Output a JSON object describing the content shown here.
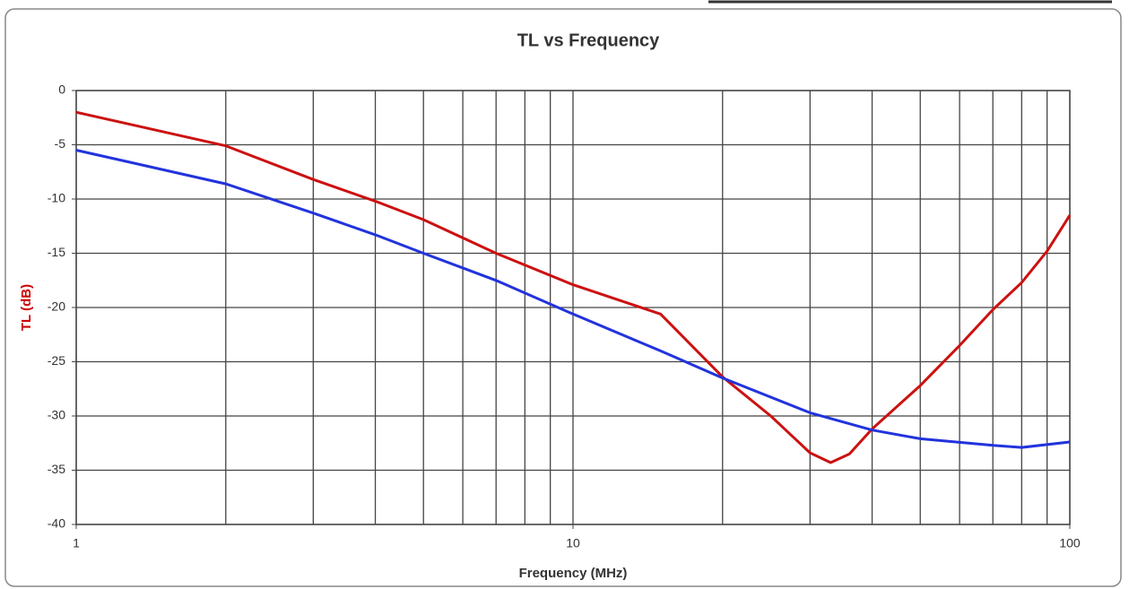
{
  "chart_data": {
    "type": "line",
    "title": "TL  vs Frequency",
    "x_label": "Frequency (MHz)",
    "y_label": "TL (dB)",
    "xscale": "log",
    "xlim": [
      1,
      100
    ],
    "xticks": [
      1,
      10,
      100
    ],
    "xminorticks": [
      2,
      3,
      4,
      5,
      6,
      7,
      8,
      9,
      20,
      30,
      40,
      50,
      60,
      70,
      80,
      90
    ],
    "ylim": [
      -40,
      0
    ],
    "yticks": [
      -40,
      -35,
      -30,
      -25,
      -20,
      -15,
      -10,
      -5,
      0
    ],
    "grid": true,
    "y_label_color": "#cc0000",
    "series": [
      {
        "color": "#cc1111",
        "x": [
          1,
          2,
          3,
          4,
          5,
          7,
          10,
          15,
          20,
          25,
          30,
          33,
          36,
          40,
          50,
          60,
          70,
          80,
          90,
          100
        ],
        "values": [
          -2,
          -5.1,
          -8.2,
          -10.2,
          -11.9,
          -15,
          -17.9,
          -20.6,
          -26.4,
          -30,
          -33.4,
          -34.3,
          -33.5,
          -31.2,
          -27.2,
          -23.5,
          -20.2,
          -17.7,
          -14.8,
          -11.5
        ]
      },
      {
        "color": "#2233dd",
        "x": [
          1,
          2,
          3,
          4,
          5,
          7,
          10,
          15,
          20,
          30,
          40,
          50,
          70,
          80,
          100
        ],
        "values": [
          -5.5,
          -8.6,
          -11.3,
          -13.3,
          -15,
          -17.5,
          -20.6,
          -24,
          -26.5,
          -29.7,
          -31.3,
          -32.1,
          -32.7,
          -32.9,
          -32.4
        ]
      }
    ]
  }
}
